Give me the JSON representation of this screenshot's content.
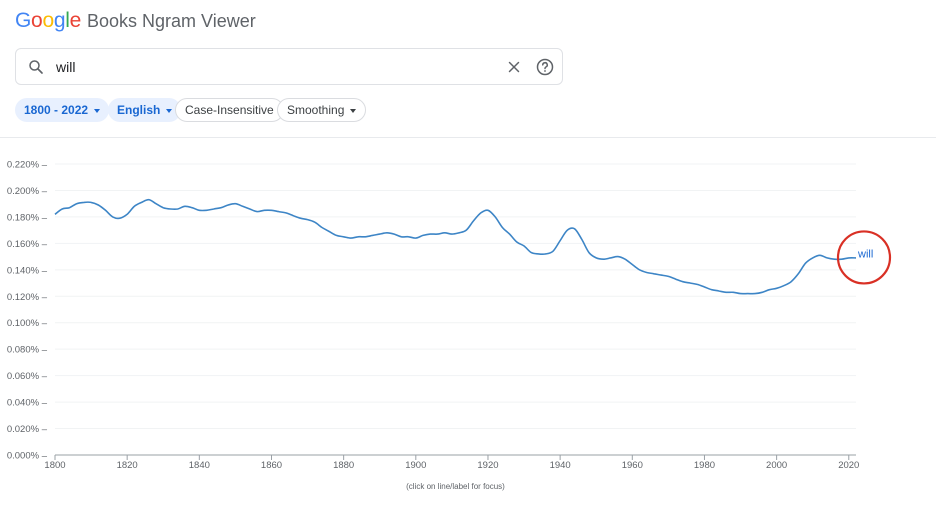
{
  "app": {
    "logo_letters": [
      {
        "ch": "G",
        "color": "#4285f4"
      },
      {
        "ch": "o",
        "color": "#ea4335"
      },
      {
        "ch": "o",
        "color": "#fbbc05"
      },
      {
        "ch": "g",
        "color": "#4285f4"
      },
      {
        "ch": "l",
        "color": "#34a853"
      },
      {
        "ch": "e",
        "color": "#ea4335"
      }
    ],
    "name": "Books Ngram Viewer"
  },
  "search": {
    "value": "will",
    "icon": "search-icon",
    "clear_icon": "close-icon",
    "help_icon": "help-icon"
  },
  "filters": {
    "year_range": "1800 - 2022",
    "corpus": "English",
    "case": "Case-Insensitive",
    "smoothing": "Smoothing"
  },
  "colors": {
    "accent": "#1967d2",
    "line": "#3d85c6",
    "highlight_circle": "#d93025"
  },
  "chart_data": {
    "type": "line",
    "x_ticks": [
      "1800",
      "1820",
      "1840",
      "1860",
      "1880",
      "1900",
      "1920",
      "1940",
      "1960",
      "1980",
      "2000",
      "2020"
    ],
    "y_ticks": [
      "0.000%",
      "0.020%",
      "0.040%",
      "0.060%",
      "0.080%",
      "0.100%",
      "0.120%",
      "0.140%",
      "0.160%",
      "0.180%",
      "0.200%",
      "0.220%"
    ],
    "xlim": [
      1800,
      2022
    ],
    "ylim": [
      0,
      0.22
    ],
    "grid": true,
    "footnote": "(click on line/label for focus)",
    "series": [
      {
        "name": "will",
        "color": "#3d85c6",
        "x": [
          1800,
          1802,
          1804,
          1806,
          1808,
          1810,
          1812,
          1814,
          1816,
          1818,
          1820,
          1822,
          1824,
          1826,
          1828,
          1830,
          1832,
          1834,
          1836,
          1838,
          1840,
          1842,
          1844,
          1846,
          1848,
          1850,
          1852,
          1854,
          1856,
          1858,
          1860,
          1862,
          1864,
          1866,
          1868,
          1870,
          1872,
          1874,
          1876,
          1878,
          1880,
          1882,
          1884,
          1886,
          1888,
          1890,
          1892,
          1894,
          1896,
          1898,
          1900,
          1902,
          1904,
          1906,
          1908,
          1910,
          1912,
          1914,
          1916,
          1918,
          1920,
          1922,
          1924,
          1926,
          1928,
          1930,
          1932,
          1934,
          1936,
          1938,
          1940,
          1942,
          1944,
          1946,
          1948,
          1950,
          1952,
          1954,
          1956,
          1958,
          1960,
          1962,
          1964,
          1966,
          1968,
          1970,
          1972,
          1974,
          1976,
          1978,
          1980,
          1982,
          1984,
          1986,
          1988,
          1990,
          1992,
          1994,
          1996,
          1998,
          2000,
          2002,
          2004,
          2006,
          2008,
          2010,
          2012,
          2014,
          2016,
          2018,
          2020,
          2022
        ],
        "y": [
          0.182,
          0.186,
          0.187,
          0.19,
          0.191,
          0.191,
          0.189,
          0.185,
          0.18,
          0.179,
          0.182,
          0.188,
          0.191,
          0.193,
          0.19,
          0.187,
          0.186,
          0.186,
          0.188,
          0.187,
          0.185,
          0.185,
          0.186,
          0.187,
          0.189,
          0.19,
          0.188,
          0.186,
          0.184,
          0.185,
          0.185,
          0.184,
          0.183,
          0.181,
          0.179,
          0.178,
          0.176,
          0.172,
          0.169,
          0.166,
          0.165,
          0.164,
          0.165,
          0.165,
          0.166,
          0.167,
          0.168,
          0.167,
          0.165,
          0.165,
          0.164,
          0.166,
          0.167,
          0.167,
          0.168,
          0.167,
          0.168,
          0.17,
          0.177,
          0.183,
          0.185,
          0.18,
          0.172,
          0.167,
          0.161,
          0.158,
          0.153,
          0.152,
          0.152,
          0.154,
          0.162,
          0.17,
          0.171,
          0.163,
          0.153,
          0.149,
          0.148,
          0.149,
          0.15,
          0.148,
          0.144,
          0.14,
          0.138,
          0.137,
          0.136,
          0.135,
          0.133,
          0.131,
          0.13,
          0.129,
          0.127,
          0.125,
          0.124,
          0.123,
          0.123,
          0.122,
          0.122,
          0.122,
          0.123,
          0.125,
          0.126,
          0.128,
          0.131,
          0.137,
          0.145,
          0.149,
          0.151,
          0.149,
          0.148,
          0.148,
          0.149,
          0.149
        ],
        "label": "will"
      }
    ]
  }
}
